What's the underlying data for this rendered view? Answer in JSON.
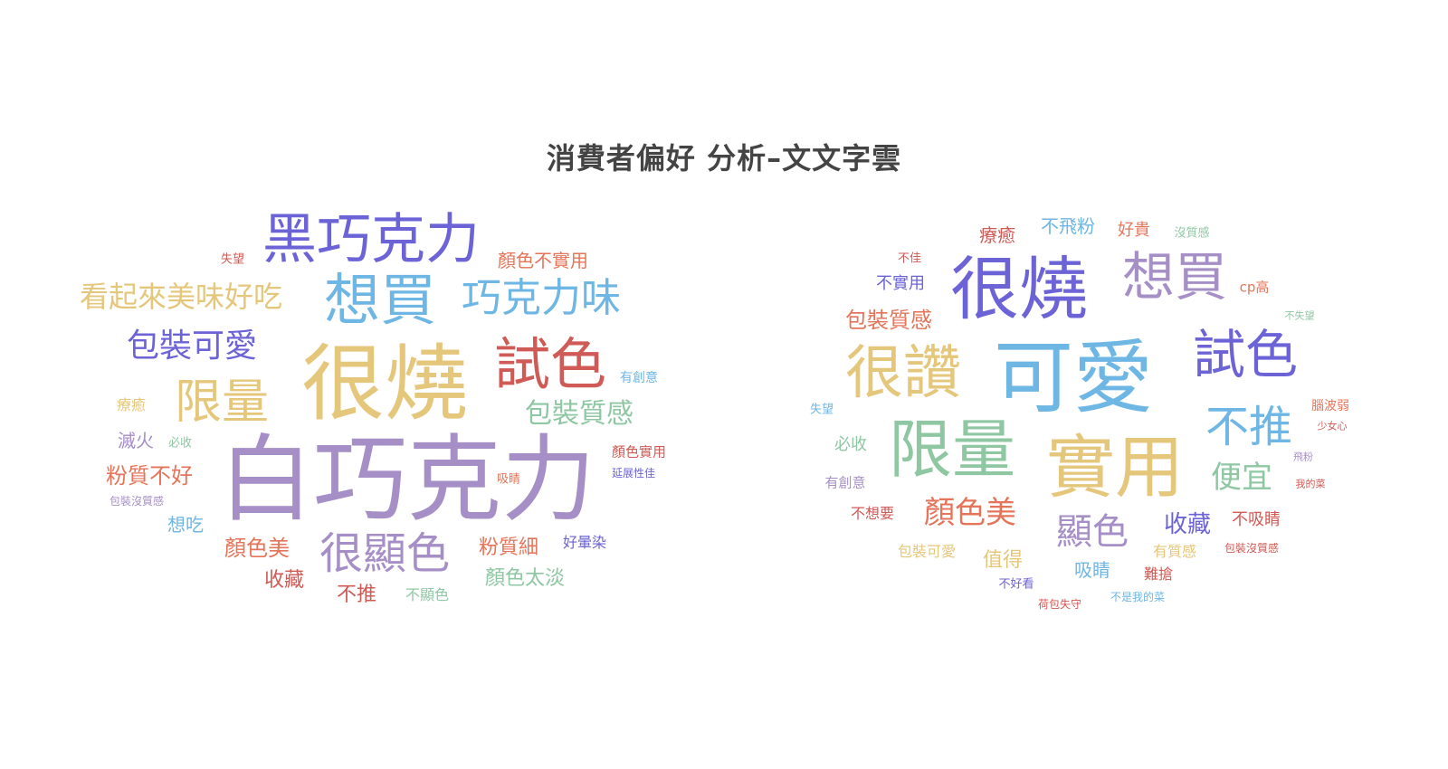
{
  "title": "消費者偏好 分析–文文字雲",
  "palette": {
    "purple": "#a68fc6",
    "blue": "#6b63d6",
    "gold": "#e5c77c",
    "red": "#d05a55",
    "green": "#8fc7a3",
    "sky": "#6eb6e3",
    "orange": "#e5755a"
  },
  "clouds": [
    {
      "name": "left-cloud",
      "words": [
        {
          "text": "白巧克力",
          "color": "purple"
        },
        {
          "text": "很燒",
          "color": "gold"
        },
        {
          "text": "黑巧克力",
          "color": "blue"
        },
        {
          "text": "想買",
          "color": "sky"
        },
        {
          "text": "巧克力味",
          "color": "sky"
        },
        {
          "text": "試色",
          "color": "red"
        },
        {
          "text": "看起來美味好吃",
          "color": "gold"
        },
        {
          "text": "包裝可愛",
          "color": "blue"
        },
        {
          "text": "限量",
          "color": "gold"
        },
        {
          "text": "很顯色",
          "color": "purple"
        },
        {
          "text": "包裝質感",
          "color": "green"
        },
        {
          "text": "顏色不實用",
          "color": "orange"
        },
        {
          "text": "粉質不好",
          "color": "orange"
        },
        {
          "text": "顏色美",
          "color": "orange"
        },
        {
          "text": "收藏",
          "color": "red"
        },
        {
          "text": "不推",
          "color": "red"
        },
        {
          "text": "粉質細",
          "color": "orange"
        },
        {
          "text": "顏色太淡",
          "color": "green"
        },
        {
          "text": "滅火",
          "color": "purple"
        },
        {
          "text": "想吃",
          "color": "sky"
        },
        {
          "text": "療癒",
          "color": "gold"
        },
        {
          "text": "好暈染",
          "color": "blue"
        },
        {
          "text": "不顯色",
          "color": "green"
        },
        {
          "text": "顏色實用",
          "color": "red"
        },
        {
          "text": "有創意",
          "color": "sky"
        },
        {
          "text": "失望",
          "color": "red"
        },
        {
          "text": "必收",
          "color": "green"
        },
        {
          "text": "吸睛",
          "color": "orange"
        },
        {
          "text": "延展性佳",
          "color": "blue"
        },
        {
          "text": "包裝沒質感",
          "color": "purple"
        }
      ]
    },
    {
      "name": "right-cloud",
      "words": [
        {
          "text": "可愛",
          "color": "sky"
        },
        {
          "text": "很燒",
          "color": "blue"
        },
        {
          "text": "實用",
          "color": "gold"
        },
        {
          "text": "限量",
          "color": "green"
        },
        {
          "text": "很讚",
          "color": "gold"
        },
        {
          "text": "想買",
          "color": "purple"
        },
        {
          "text": "試色",
          "color": "blue"
        },
        {
          "text": "不推",
          "color": "sky"
        },
        {
          "text": "顯色",
          "color": "purple"
        },
        {
          "text": "顏色美",
          "color": "orange"
        },
        {
          "text": "便宜",
          "color": "green"
        },
        {
          "text": "收藏",
          "color": "blue"
        },
        {
          "text": "包裝質感",
          "color": "orange"
        },
        {
          "text": "值得",
          "color": "gold"
        },
        {
          "text": "吸睛",
          "color": "sky"
        },
        {
          "text": "不飛粉",
          "color": "sky"
        },
        {
          "text": "療癒",
          "color": "red"
        },
        {
          "text": "好貴",
          "color": "orange"
        },
        {
          "text": "必收",
          "color": "green"
        },
        {
          "text": "不實用",
          "color": "blue"
        },
        {
          "text": "不吸睛",
          "color": "red"
        },
        {
          "text": "難搶",
          "color": "red"
        },
        {
          "text": "有質感",
          "color": "gold"
        },
        {
          "text": "不想要",
          "color": "red"
        },
        {
          "text": "包裝可愛",
          "color": "gold"
        },
        {
          "text": "有創意",
          "color": "purple"
        },
        {
          "text": "cp高",
          "color": "orange"
        },
        {
          "text": "腦波弱",
          "color": "orange"
        },
        {
          "text": "沒質感",
          "color": "green"
        },
        {
          "text": "不佳",
          "color": "red"
        },
        {
          "text": "失望",
          "color": "sky"
        },
        {
          "text": "不好看",
          "color": "blue"
        },
        {
          "text": "荷包失守",
          "color": "red"
        },
        {
          "text": "不是我的菜",
          "color": "sky"
        },
        {
          "text": "包裝沒質感",
          "color": "red"
        },
        {
          "text": "少女心",
          "color": "red"
        },
        {
          "text": "我的菜",
          "color": "red"
        },
        {
          "text": "飛粉",
          "color": "purple"
        },
        {
          "text": "不失望",
          "color": "green"
        }
      ]
    }
  ]
}
